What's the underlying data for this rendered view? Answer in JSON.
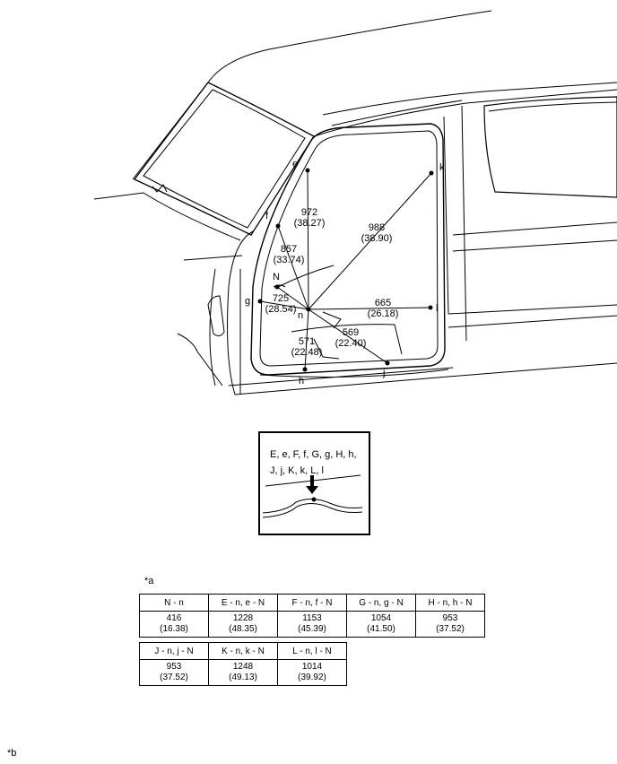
{
  "labels": {
    "e": "e",
    "f": "f",
    "g": "g",
    "h": "h",
    "j": "j",
    "k": "k",
    "l": "l",
    "n": "n",
    "N": "N"
  },
  "measurements": [
    {
      "id": "972",
      "mm": "972",
      "in": "(38.27)"
    },
    {
      "id": "857",
      "mm": "857",
      "in": "(33.74)"
    },
    {
      "id": "725",
      "mm": "725",
      "in": "(28.54)"
    },
    {
      "id": "988",
      "mm": "988",
      "in": "(38.90)"
    },
    {
      "id": "665",
      "mm": "665",
      "in": "(26.18)"
    },
    {
      "id": "569",
      "mm": "569",
      "in": "(22.40)"
    },
    {
      "id": "571",
      "mm": "571",
      "in": "(22.48)"
    }
  ],
  "inset": {
    "line1": "E, e, F, f, G, g, H, h,",
    "line2": "J, j, K, k, L, l"
  },
  "note_a": "*a",
  "note_b": "*b",
  "table1": {
    "headers": [
      "N - n",
      "E - n, e - N",
      "F - n, f - N",
      "G - n, g - N",
      "H - n, h - N"
    ],
    "values": [
      {
        "mm": "416",
        "in": "(16.38)"
      },
      {
        "mm": "1228",
        "in": "(48.35)"
      },
      {
        "mm": "1153",
        "in": "(45.39)"
      },
      {
        "mm": "1054",
        "in": "(41.50)"
      },
      {
        "mm": "953",
        "in": "(37.52)"
      }
    ]
  },
  "table2": {
    "headers": [
      "J - n, j - N",
      "K - n, k - N",
      "L - n, l - N"
    ],
    "values": [
      {
        "mm": "953",
        "in": "(37.52)"
      },
      {
        "mm": "1248",
        "in": "(49.13)"
      },
      {
        "mm": "1014",
        "in": "(39.92)"
      }
    ]
  }
}
